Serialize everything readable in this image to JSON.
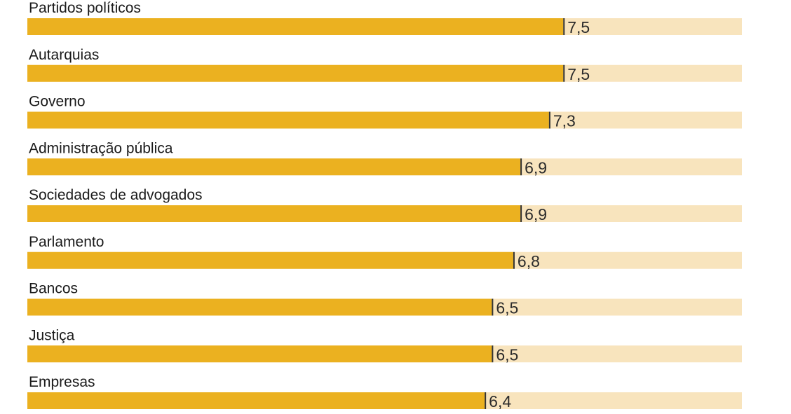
{
  "chart_data": {
    "type": "bar",
    "orientation": "horizontal",
    "categories": [
      "Partidos políticos",
      "Autarquias",
      "Governo",
      "Administração pública",
      "Sociedades de advogados",
      "Parlamento",
      "Bancos",
      "Justiça",
      "Empresas"
    ],
    "values": [
      7.5,
      7.5,
      7.3,
      6.9,
      6.9,
      6.8,
      6.5,
      6.5,
      6.4
    ],
    "value_labels": [
      "7,5",
      "7,5",
      "7,3",
      "6,9",
      "6,9",
      "6,8",
      "6,5",
      "6,5",
      "6,4"
    ],
    "xlim": [
      0,
      10
    ],
    "grid": false,
    "legend": "none",
    "colors": {
      "bar": "#ebb120",
      "track": "#f8e4bd",
      "marker": "#333333"
    }
  }
}
